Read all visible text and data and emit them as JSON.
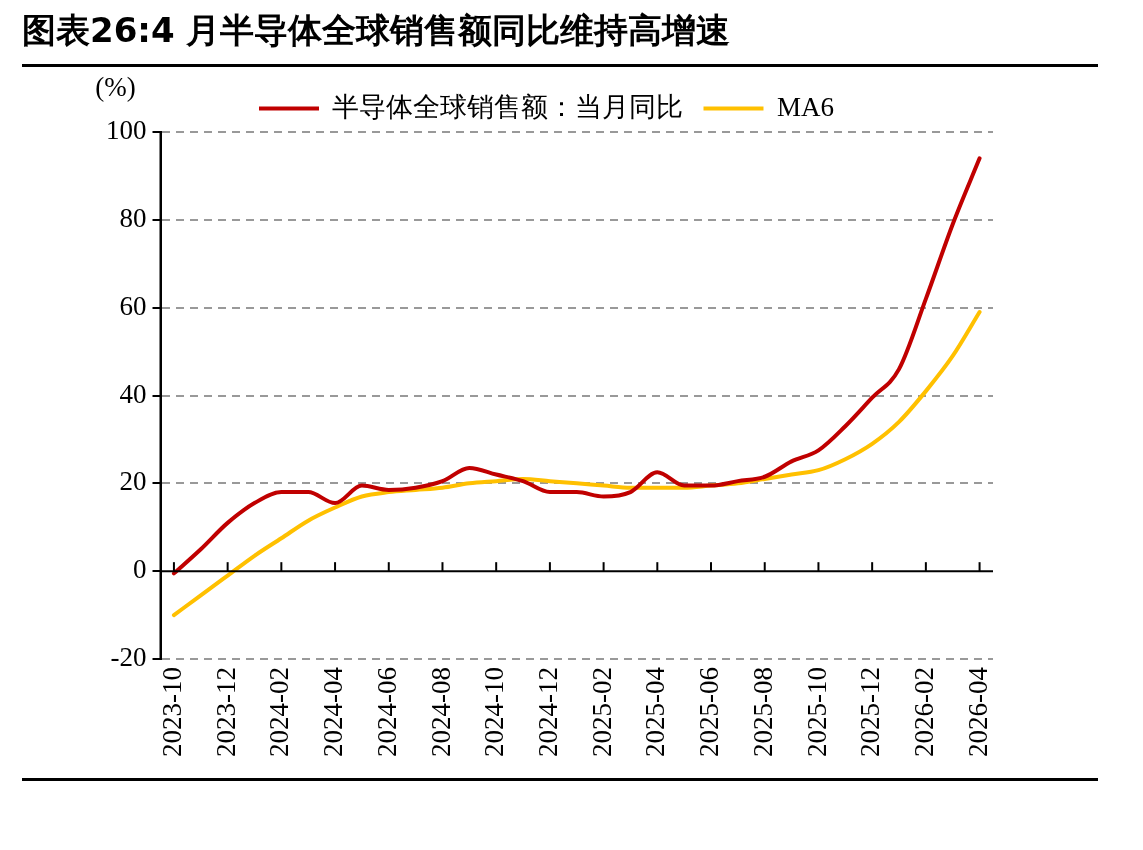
{
  "chart_data": {
    "type": "line",
    "title": "图表26:4 月半导体全球销售额同比维持高增速",
    "ylabel": "(%)",
    "categories": [
      "2023-10",
      null,
      "2023-12",
      null,
      "2024-02",
      null,
      "2024-04",
      null,
      "2024-06",
      null,
      "2024-08",
      null,
      "2024-10",
      null,
      "2024-12",
      null,
      "2025-02",
      null,
      "2025-04",
      null,
      "2025-06",
      null,
      "2025-08",
      null,
      "2025-10",
      null,
      "2025-12",
      null,
      "2026-02",
      null,
      "2026-04"
    ],
    "series": [
      {
        "name": "半导体全球销售额：当月同比",
        "color": "#c00000",
        "values": [
          -0.5,
          5,
          11,
          15.5,
          18,
          18,
          15.5,
          19.5,
          18.5,
          19,
          20.5,
          23.5,
          22,
          20.5,
          18,
          18,
          17,
          18,
          22.5,
          19.5,
          19.5,
          20.5,
          21.5,
          25,
          27.5,
          33,
          39.5,
          46,
          62,
          79,
          94
        ]
      },
      {
        "name": "MA6",
        "color": "#ffc000",
        "values": [
          -10,
          -5.5,
          -1,
          3.5,
          7.5,
          11.5,
          14.5,
          17,
          18,
          18.5,
          19,
          20,
          20.5,
          21,
          20.5,
          20,
          19.5,
          19,
          19,
          19,
          19.5,
          20,
          21,
          22,
          23,
          25.5,
          29,
          34,
          41,
          49,
          59
        ]
      }
    ],
    "ylim": [
      -20,
      100
    ],
    "yticks": [
      -20,
      0,
      20,
      40,
      60,
      80,
      100
    ],
    "grid": "y",
    "legend": "top",
    "marker": "none",
    "line_style": "solid"
  }
}
